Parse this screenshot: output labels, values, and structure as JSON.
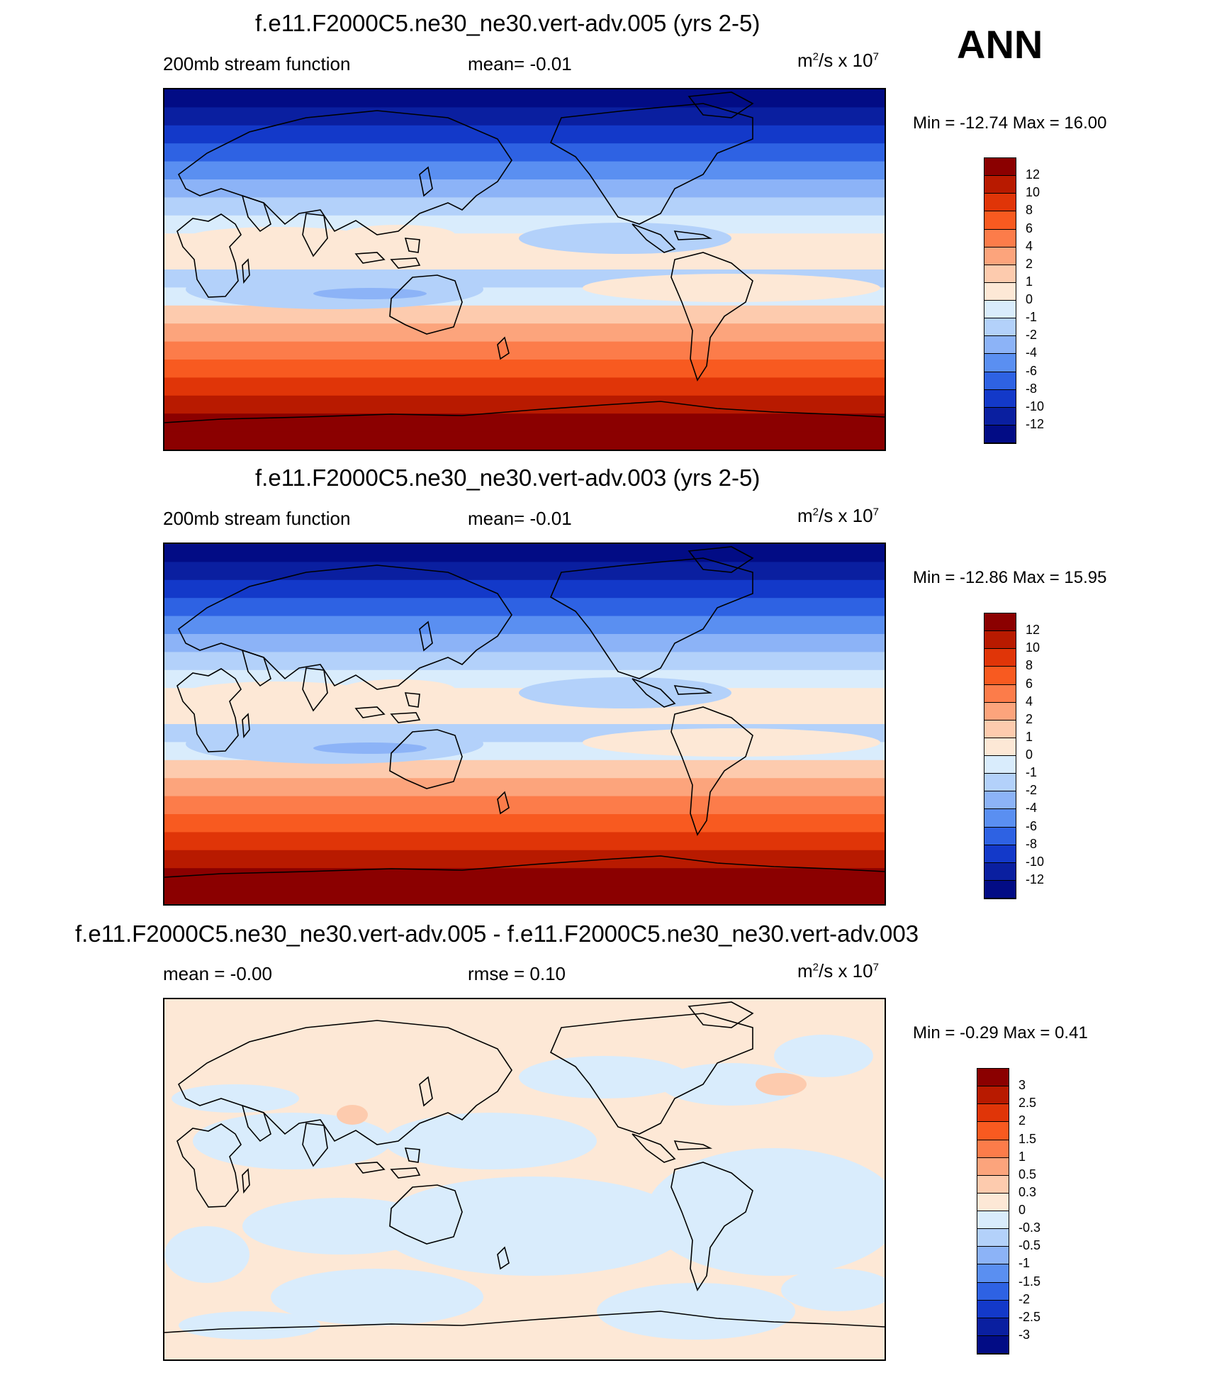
{
  "season": "ANN",
  "panels": [
    {
      "title": "f.e11.F2000C5.ne30_ne30.vert-adv.005 (yrs 2-5)",
      "left_label": "200mb stream function",
      "center_label": "mean=  -0.01",
      "units_main": "m",
      "units_sup": "2",
      "units_mid": "/s x 10",
      "units_exp": "7",
      "minmax": "Min = -12.74 Max =  16.00"
    },
    {
      "title": "f.e11.F2000C5.ne30_ne30.vert-adv.003 (yrs 2-5)",
      "left_label": "200mb stream function",
      "center_label": "mean=  -0.01",
      "units_main": "m",
      "units_sup": "2",
      "units_mid": "/s x 10",
      "units_exp": "7",
      "minmax": "Min = -12.86 Max =  15.95"
    },
    {
      "title": "f.e11.F2000C5.ne30_ne30.vert-adv.005 - f.e11.F2000C5.ne30_ne30.vert-adv.003",
      "left_label": "mean =  -0.00",
      "center_label": "rmse =   0.10",
      "units_main": "m",
      "units_sup": "2",
      "units_mid": "/s x 10",
      "units_exp": "7",
      "minmax": "Min =  -0.29 Max =   0.41"
    }
  ],
  "chart_data": [
    {
      "type": "heatmap",
      "title": "f.e11.F2000C5.ne30_ne30.vert-adv.005 (yrs 2-5)",
      "field": "200mb stream function",
      "units": "m2/s x 10^7",
      "mean": -0.01,
      "min": -12.74,
      "max": 16.0,
      "colorbar_levels": [
        "12",
        "10",
        "8",
        "6",
        "4",
        "2",
        "1",
        "0",
        "-1",
        "-2",
        "-4",
        "-6",
        "-8",
        "-10",
        "-12"
      ],
      "colorbar_colors": [
        "#8b0000",
        "#b81a00",
        "#e03508",
        "#f85a20",
        "#fc7c4a",
        "#fca47c",
        "#fdcbae",
        "#fde8d6",
        "#d9ecfc",
        "#b3d1fa",
        "#8cb3f7",
        "#5a8ff1",
        "#2e62e3",
        "#1339c9",
        "#0a1fa0",
        "#020c85"
      ],
      "zonal_bands": [
        -12.5,
        -11,
        -9,
        -7,
        -5,
        -3,
        -1.5,
        -0.5,
        0.5,
        0.5,
        -1.5,
        -0.5,
        1.5,
        3,
        5,
        7,
        9,
        11,
        13,
        14
      ]
    },
    {
      "type": "heatmap",
      "title": "f.e11.F2000C5.ne30_ne30.vert-adv.003 (yrs 2-5)",
      "field": "200mb stream function",
      "units": "m2/s x 10^7",
      "mean": -0.01,
      "min": -12.86,
      "max": 15.95,
      "colorbar_levels": [
        "12",
        "10",
        "8",
        "6",
        "4",
        "2",
        "1",
        "0",
        "-1",
        "-2",
        "-4",
        "-6",
        "-8",
        "-10",
        "-12"
      ],
      "colorbar_colors": [
        "#8b0000",
        "#b81a00",
        "#e03508",
        "#f85a20",
        "#fc7c4a",
        "#fca47c",
        "#fdcbae",
        "#fde8d6",
        "#d9ecfc",
        "#b3d1fa",
        "#8cb3f7",
        "#5a8ff1",
        "#2e62e3",
        "#1339c9",
        "#0a1fa0",
        "#020c85"
      ],
      "zonal_bands": [
        -12.5,
        -11,
        -9,
        -7,
        -5,
        -3,
        -1.5,
        -0.5,
        0.5,
        0.5,
        -1.5,
        -0.5,
        1.5,
        3,
        5,
        7,
        9,
        11,
        13,
        14
      ]
    },
    {
      "type": "heatmap",
      "title": "f.e11.F2000C5.ne30_ne30.vert-adv.005 - f.e11.F2000C5.ne30_ne30.vert-adv.003",
      "field": "difference",
      "units": "m2/s x 10^7",
      "mean": -0.0,
      "rmse": 0.1,
      "min": -0.29,
      "max": 0.41,
      "colorbar_levels": [
        "3",
        "2.5",
        "2",
        "1.5",
        "1",
        "0.5",
        "0.3",
        "0",
        "-0.3",
        "-0.5",
        "-1",
        "-1.5",
        "-2",
        "-2.5",
        "-3"
      ],
      "colorbar_colors": [
        "#8b0000",
        "#b81a00",
        "#e03508",
        "#f85a20",
        "#fc7c4a",
        "#fca47c",
        "#fdcbae",
        "#fde8d6",
        "#d9ecfc",
        "#b3d1fa",
        "#8cb3f7",
        "#5a8ff1",
        "#2e62e3",
        "#1339c9",
        "#0a1fa0",
        "#020c85"
      ]
    }
  ]
}
